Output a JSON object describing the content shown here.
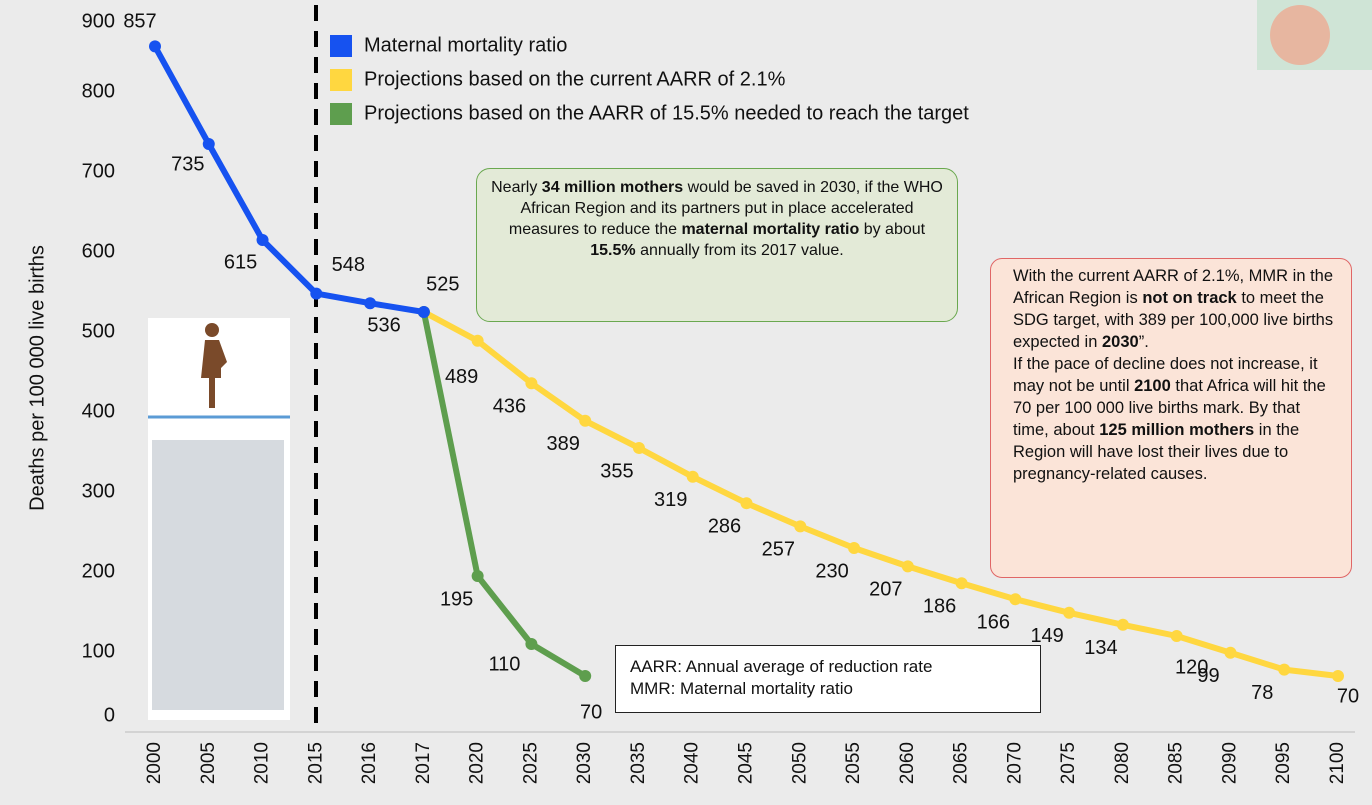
{
  "chart_data": {
    "type": "line",
    "y_label": "Deaths per 100 000 live births",
    "categories": [
      "2000",
      "2005",
      "2010",
      "2015",
      "2016",
      "2017",
      "2020",
      "2025",
      "2030",
      "2035",
      "2040",
      "2045",
      "2050",
      "2055",
      "2060",
      "2065",
      "2070",
      "2075",
      "2080",
      "2085",
      "2090",
      "2095",
      "2100"
    ],
    "series": [
      {
        "name": "Maternal mortality ratio",
        "color": "#1652f0",
        "values": [
          857,
          735,
          615,
          548,
          536,
          525,
          null,
          null,
          null,
          null,
          null,
          null,
          null,
          null,
          null,
          null,
          null,
          null,
          null,
          null,
          null,
          null,
          null
        ]
      },
      {
        "name": "Projections based on the current AARR of 2.1%",
        "color": "#ffd740",
        "values": [
          null,
          null,
          null,
          null,
          null,
          525,
          489,
          436,
          389,
          355,
          319,
          286,
          257,
          230,
          207,
          186,
          166,
          149,
          134,
          120,
          99,
          78,
          70
        ]
      },
      {
        "name": "Projections based on the AARR of 15.5% needed to reach the target",
        "color": "#5e9e4e",
        "values": [
          null,
          null,
          null,
          null,
          null,
          525,
          195,
          110,
          70,
          null,
          null,
          null,
          null,
          null,
          null,
          null,
          null,
          null,
          null,
          null,
          null,
          null,
          null
        ]
      }
    ],
    "ylim": [
      0,
      900
    ],
    "yticks": [
      0,
      100,
      200,
      300,
      400,
      500,
      600,
      700,
      800,
      900
    ],
    "legend": "top-left",
    "annotations": {
      "green_box": [
        [
          {
            "text": "Nearly ",
            "bold": false
          },
          {
            "text": "34 million mothers",
            "bold": true
          },
          {
            "text": " would be saved in 2030, if the  WHO African Region  and its partners put in place accelerated measures to reduce the ",
            "bold": false
          },
          {
            "text": "maternal mortality ratio",
            "bold": true
          },
          {
            "text": " by about ",
            "bold": false
          },
          {
            "text": "15.5%",
            "bold": true
          },
          {
            "text": " annually from its 2017 value.",
            "bold": false
          }
        ]
      ],
      "red_box": [
        [
          {
            "text": "With the current AARR of 2.1%, MMR in the African Region is ",
            "bold": false
          },
          {
            "text": "not on track",
            "bold": true
          },
          {
            "text": " to meet the SDG target, with 389 per 100,000 live births expected in ",
            "bold": false
          },
          {
            "text": "2030",
            "bold": true
          },
          {
            "text": "”.",
            "bold": false
          }
        ],
        [
          {
            "text": "If the pace of decline does not increase, it may not be until ",
            "bold": false
          },
          {
            "text": "2100",
            "bold": true
          },
          {
            "text": " that Africa will hit the 70 per 100 000 live births mark. By that time, about ",
            "bold": false
          },
          {
            "text": "125 million mothers",
            "bold": true
          },
          {
            "text": " in the Region will have lost their lives due to pregnancy-related causes.",
            "bold": false
          }
        ]
      ],
      "note_box": [
        "AARR: Annual average of reduction rate",
        "MMR: Maternal mortality ratio"
      ]
    }
  }
}
